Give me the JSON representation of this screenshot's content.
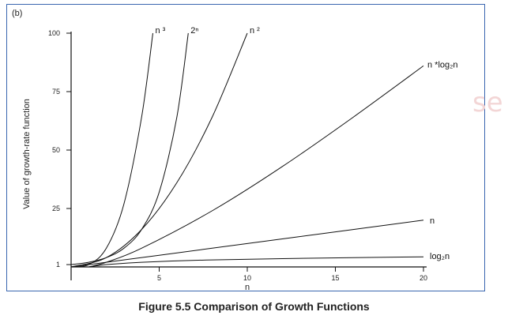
{
  "panel_label": "(b)",
  "caption": "Figure 5.5 Comparison of Growth Functions",
  "watermark_text": "se",
  "colors": {
    "frame": "#3a66b0",
    "line": "#111111",
    "watermark": "#f3d6d6"
  },
  "chart_data": {
    "type": "line",
    "title": "",
    "xlabel": "n",
    "ylabel": "Value of growth-rate function",
    "xlim": [
      0,
      20
    ],
    "ylim": [
      0,
      100
    ],
    "x_ticks": [
      5,
      10,
      15,
      20
    ],
    "y_ticks": [
      1,
      25,
      50,
      75,
      100
    ],
    "grid": false,
    "legend": "inline labels at line ends",
    "series": [
      {
        "name": "2ⁿ",
        "x": [
          0,
          1,
          2,
          3,
          4,
          5,
          6,
          6.65
        ],
        "y": [
          1,
          2,
          4,
          8,
          16,
          32,
          64,
          100
        ]
      },
      {
        "name": "n ³",
        "x": [
          0,
          1,
          2,
          3,
          4,
          4.64
        ],
        "y": [
          0,
          1,
          8,
          27,
          64,
          100
        ]
      },
      {
        "name": "n ²",
        "x": [
          0,
          2,
          4,
          6,
          8,
          10
        ],
        "y": [
          0,
          4,
          16,
          36,
          64,
          100
        ]
      },
      {
        "name": "n *log₂n",
        "x": [
          1,
          2,
          4,
          8,
          12,
          16,
          20
        ],
        "y": [
          0,
          2,
          8,
          24,
          43,
          64,
          86
        ]
      },
      {
        "name": "n",
        "x": [
          0,
          5,
          10,
          15,
          20
        ],
        "y": [
          0,
          5,
          10,
          15,
          20
        ]
      },
      {
        "name": "log₂n",
        "x": [
          1,
          2,
          4,
          8,
          16,
          20
        ],
        "y": [
          0,
          1,
          2,
          3,
          4,
          4.32
        ]
      }
    ]
  }
}
